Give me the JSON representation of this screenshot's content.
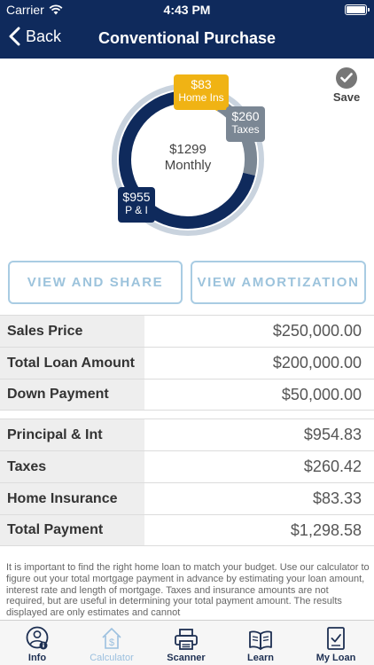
{
  "status_bar": {
    "carrier": "Carrier",
    "time": "4:43 PM"
  },
  "nav": {
    "back_label": "Back",
    "title": "Conventional Purchase"
  },
  "save_label": "Save",
  "donut": {
    "center_amount": "$1299",
    "center_label": "Monthly",
    "segments": [
      {
        "amount": "$955",
        "label": "P & I",
        "value": 954.83,
        "color": "#0f2a5c"
      },
      {
        "amount": "$260",
        "label": "Taxes",
        "value": 260.42,
        "color": "#7b8794"
      },
      {
        "amount": "$83",
        "label": "Home Ins",
        "value": 83.33,
        "color": "#f0b314"
      }
    ]
  },
  "buttons": {
    "share": "VIEW AND SHARE",
    "amortization": "VIEW AMORTIZATION"
  },
  "loan_table": [
    {
      "label": "Sales Price",
      "value": "$250,000.00"
    },
    {
      "label": "Total Loan Amount",
      "value": "$200,000.00"
    },
    {
      "label": "Down Payment",
      "value": "$50,000.00"
    }
  ],
  "payment_table": [
    {
      "label": "Principal & Int",
      "value": "$954.83"
    },
    {
      "label": "Taxes",
      "value": "$260.42"
    },
    {
      "label": "Home Insurance",
      "value": "$83.33"
    },
    {
      "label": "Total Payment",
      "value": "$1,298.58"
    }
  ],
  "disclaimer": "It is important to find the right home loan to match your budget. Use our calculator to figure out your total mortgage payment in advance by estimating your loan amount, interest rate and length of mortgage. Taxes and insurance amounts are not required, but are useful in determining your total payment amount. The results displayed are only estimates and cannot",
  "tabs": [
    {
      "label": "Info",
      "icon": "user-info-icon"
    },
    {
      "label": "Calculator",
      "icon": "calculator-house-icon",
      "active": true
    },
    {
      "label": "Scanner",
      "icon": "printer-scanner-icon"
    },
    {
      "label": "Learn",
      "icon": "open-book-icon"
    },
    {
      "label": "My Loan",
      "icon": "loan-checklist-icon"
    }
  ],
  "colors": {
    "nav_bg": "#0f2a5c",
    "accent_light": "#a9cce3",
    "home_ins": "#f0b314",
    "taxes": "#7b8794",
    "principal": "#0f2a5c"
  }
}
